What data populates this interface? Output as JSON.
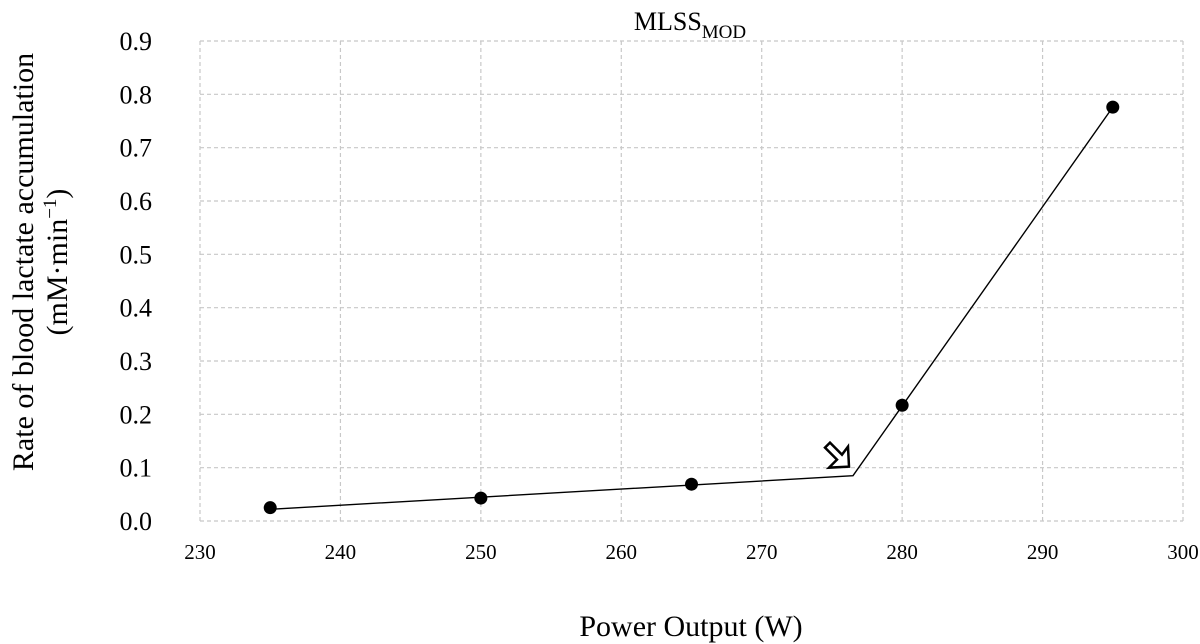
{
  "chart_data": {
    "type": "scatter",
    "title": {
      "main": "MLSS",
      "subscript": "MOD"
    },
    "xlabel": "Power Output (W)",
    "ylabel": {
      "line1": "Rate of blood lactate accumulation",
      "line2_prefix": "(mM·min",
      "line2_sup": "−1",
      "line2_suffix": ")"
    },
    "xlim": [
      230,
      300
    ],
    "ylim": [
      0,
      0.9
    ],
    "x_ticks": [
      230,
      240,
      250,
      260,
      270,
      280,
      290,
      300
    ],
    "y_ticks": [
      "0.0",
      "0.1",
      "0.2",
      "0.3",
      "0.4",
      "0.5",
      "0.6",
      "0.7",
      "0.8",
      "0.9"
    ],
    "grid": true,
    "series": [
      {
        "points": [
          {
            "x": 235,
            "y": 0.025
          },
          {
            "x": 250,
            "y": 0.043
          },
          {
            "x": 265,
            "y": 0.069
          },
          {
            "x": 280,
            "y": 0.217
          },
          {
            "x": 295,
            "y": 0.776
          }
        ]
      }
    ],
    "fit_line": [
      {
        "x": 235,
        "y": 0.022
      },
      {
        "x": 276.5,
        "y": 0.085
      },
      {
        "x": 295,
        "y": 0.776
      }
    ],
    "annotation": {
      "type": "arrow",
      "x": 276.5,
      "y": 0.085
    }
  }
}
